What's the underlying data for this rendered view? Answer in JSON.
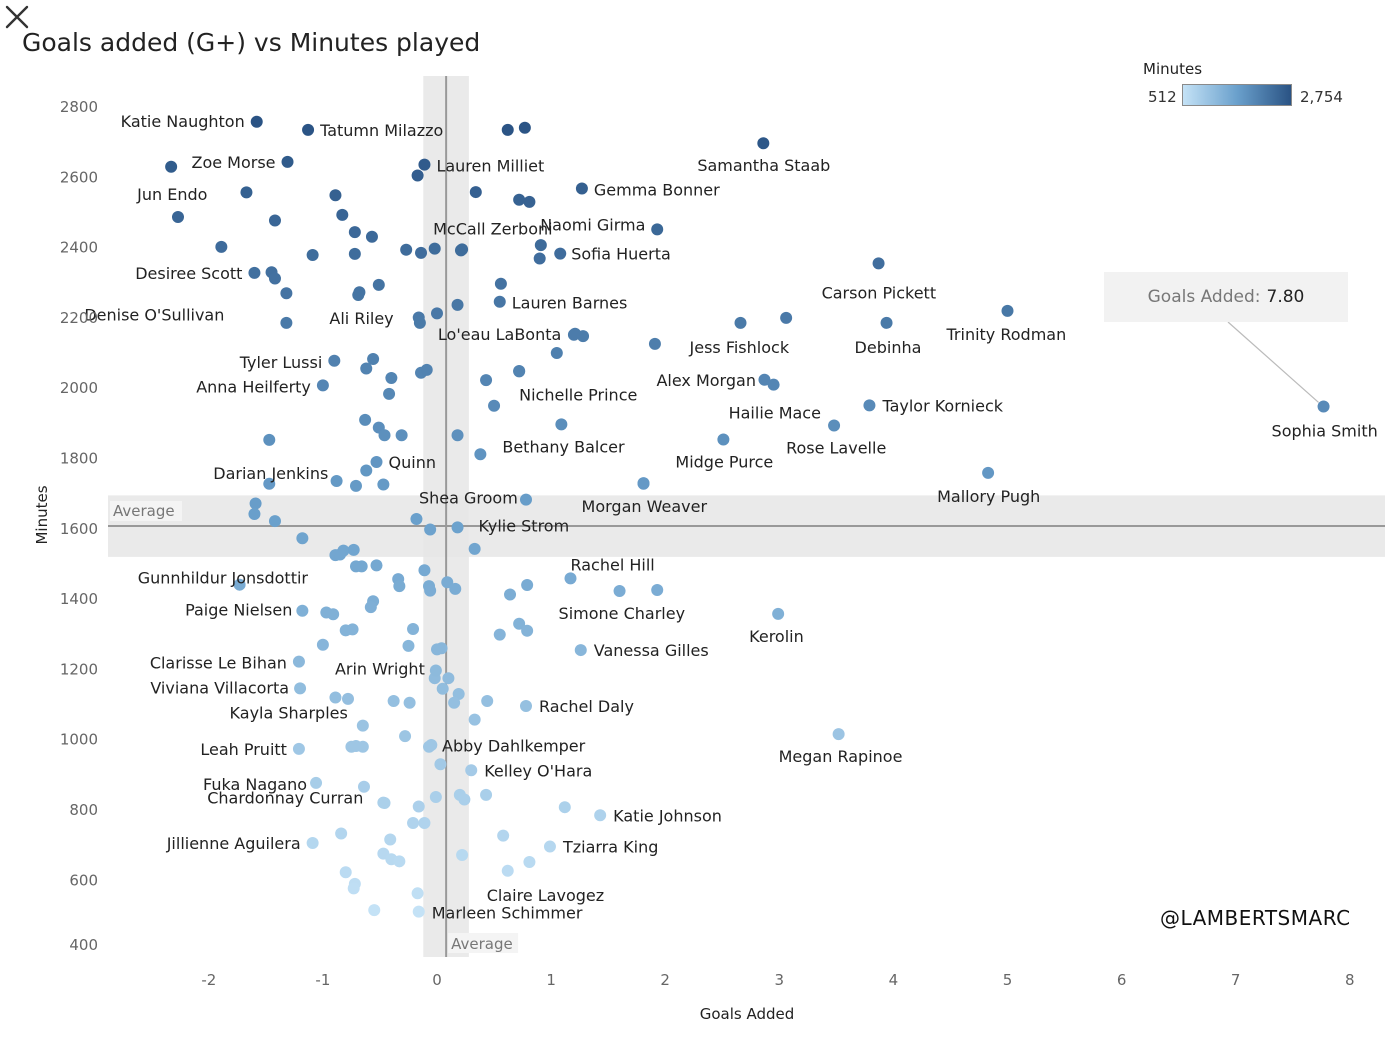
{
  "title": "Goals added (G+) vs Minutes played",
  "watermark": "@LAMBERTSMARC",
  "legend": {
    "title": "Minutes",
    "min_label": "512",
    "max_label": "2,754"
  },
  "tooltip": {
    "label": "Goals Added:",
    "value": "7.80"
  },
  "icons": {
    "close": "close-icon"
  },
  "colors": {
    "low": "#c4e2f6",
    "mid": "#6aa0cc",
    "high": "#2a5384",
    "band": "#e6e6e6",
    "refline": "#999999"
  },
  "chart_data": {
    "type": "scatter",
    "title": "Goals added (G+) vs Minutes played",
    "xlabel": "Goals Added",
    "ylabel": "Minutes",
    "xlim": [
      -2.8,
      8.3
    ],
    "ylim": [
      370,
      2860
    ],
    "x_ticks": [
      "-2",
      "-1",
      "0",
      "1",
      "2",
      "3",
      "4",
      "5",
      "6",
      "7",
      "8"
    ],
    "y_ticks": [
      "2800",
      "2600",
      "2400",
      "2200",
      "2000",
      "1800",
      "1600",
      "1400",
      "1200",
      "1000",
      "800",
      "600",
      "400"
    ],
    "grid": false,
    "color_scale": {
      "field": "Minutes",
      "min": 512,
      "max": 2754
    },
    "reference_lines": {
      "x": {
        "value": 0.08,
        "band": [
          -0.12,
          0.28
        ],
        "label": "Average"
      },
      "y": {
        "value": 1608,
        "band": [
          1520,
          1695
        ],
        "label": "Average"
      }
    },
    "labeled_points": [
      {
        "name": "Katie Naughton",
        "x": -1.58,
        "y": 2758
      },
      {
        "name": "Tatumn Milazzo",
        "x": -1.13,
        "y": 2735
      },
      {
        "name": "Zoe Morse",
        "x": -1.31,
        "y": 2644
      },
      {
        "name": "Jun Endo",
        "x": -2.33,
        "y": 2630
      },
      {
        "name": "Lauren Milliet",
        "x": -0.11,
        "y": 2636
      },
      {
        "name": "Samantha Staab",
        "x": 2.86,
        "y": 2697
      },
      {
        "name": "Gemma Bonner",
        "x": 1.27,
        "y": 2568
      },
      {
        "name": "Naomi Girma",
        "x": 1.93,
        "y": 2452
      },
      {
        "name": "McCall Zerboni",
        "x": 0.22,
        "y": 2395
      },
      {
        "name": "Sofia Huerta",
        "x": 1.08,
        "y": 2383
      },
      {
        "name": "Desiree Scott",
        "x": -1.6,
        "y": 2328
      },
      {
        "name": "Carson Pickett",
        "x": 3.87,
        "y": 2355
      },
      {
        "name": "Denise O'Sullivan",
        "x": -1.32,
        "y": 2270
      },
      {
        "name": "Lauren Barnes",
        "x": 0.55,
        "y": 2246
      },
      {
        "name": "Trinity Rodman",
        "x": 5.0,
        "y": 2220
      },
      {
        "name": "Ali Riley",
        "x": -0.68,
        "y": 2273
      },
      {
        "name": "Debinha",
        "x": 3.94,
        "y": 2186
      },
      {
        "name": "Jess Fishlock",
        "x": 2.66,
        "y": 2186
      },
      {
        "name": "Lo'eau LaBonta",
        "x": 1.2,
        "y": 2152
      },
      {
        "name": "Tyler Lussi",
        "x": -0.9,
        "y": 2078
      },
      {
        "name": "Anna Heilferty",
        "x": -1.0,
        "y": 2008
      },
      {
        "name": "Alex Morgan",
        "x": 2.87,
        "y": 2024
      },
      {
        "name": "Nichelle Prince",
        "x": 0.72,
        "y": 2048
      },
      {
        "name": "Hailie Mace",
        "x": 2.95,
        "y": 2010
      },
      {
        "name": "Taylor Kornieck",
        "x": 3.79,
        "y": 1951
      },
      {
        "name": "Sophia Smith",
        "x": 7.77,
        "y": 1948
      },
      {
        "name": "Rose Lavelle",
        "x": 3.48,
        "y": 1894
      },
      {
        "name": "Bethany Balcer",
        "x": 1.09,
        "y": 1897
      },
      {
        "name": "Midge Purce",
        "x": 2.51,
        "y": 1854
      },
      {
        "name": "Darian Jenkins",
        "x": -1.47,
        "y": 1728
      },
      {
        "name": "Quinn",
        "x": -0.53,
        "y": 1790
      },
      {
        "name": "Mallory Pugh",
        "x": 4.83,
        "y": 1759
      },
      {
        "name": "Morgan Weaver",
        "x": 1.81,
        "y": 1728
      },
      {
        "name": "Shea Groom",
        "x": 0.78,
        "y": 1683
      },
      {
        "name": "Kylie Strom",
        "x": 0.18,
        "y": 1604
      },
      {
        "name": "Gunnhildur Jonsdottir",
        "x": -0.85,
        "y": 1527
      },
      {
        "name": "Rachel Hill",
        "x": 1.17,
        "y": 1459
      },
      {
        "name": "Paige Nielsen",
        "x": -1.18,
        "y": 1367
      },
      {
        "name": "Simone Charley",
        "x": 1.6,
        "y": 1423
      },
      {
        "name": "Kerolin",
        "x": 2.99,
        "y": 1358
      },
      {
        "name": "Vanessa Gilles",
        "x": 1.26,
        "y": 1255
      },
      {
        "name": "Clarisse Le Bihan",
        "x": -1.21,
        "y": 1222
      },
      {
        "name": "Arin Wright",
        "x": -0.01,
        "y": 1197
      },
      {
        "name": "Viviana Villacorta",
        "x": -1.2,
        "y": 1146
      },
      {
        "name": "Rachel Daly",
        "x": 0.78,
        "y": 1096
      },
      {
        "name": "Kayla Sharples",
        "x": -0.65,
        "y": 1040
      },
      {
        "name": "Megan Rapinoe",
        "x": 3.52,
        "y": 1016
      },
      {
        "name": "Abby Dahlkemper",
        "x": -0.07,
        "y": 980
      },
      {
        "name": "Leah Pruitt",
        "x": -1.21,
        "y": 974
      },
      {
        "name": "Kelley O'Hara",
        "x": 0.3,
        "y": 913
      },
      {
        "name": "Fuka Nagano",
        "x": -1.06,
        "y": 877
      },
      {
        "name": "Chardonnay Curran",
        "x": -0.47,
        "y": 821
      },
      {
        "name": "Katie Johnson",
        "x": 1.43,
        "y": 785
      },
      {
        "name": "Tziarra King",
        "x": 0.99,
        "y": 696
      },
      {
        "name": "Jillienne Aguilera",
        "x": -1.09,
        "y": 706
      },
      {
        "name": "Claire Lavogez",
        "x": 0.62,
        "y": 627
      },
      {
        "name": "Marleen Schimmer",
        "x": -0.16,
        "y": 511
      }
    ],
    "unlabeled_points": [
      [
        -0.17,
        2605
      ],
      [
        0.62,
        2735
      ],
      [
        0.77,
        2741
      ],
      [
        0.34,
        2558
      ],
      [
        0.72,
        2536
      ],
      [
        0.81,
        2530
      ],
      [
        -1.67,
        2557
      ],
      [
        -0.89,
        2549
      ],
      [
        -0.83,
        2493
      ],
      [
        -2.27,
        2487
      ],
      [
        -1.42,
        2477
      ],
      [
        -0.72,
        2444
      ],
      [
        -0.57,
        2431
      ],
      [
        -1.89,
        2402
      ],
      [
        -1.09,
        2379
      ],
      [
        -0.72,
        2382
      ],
      [
        -0.27,
        2394
      ],
      [
        -0.14,
        2385
      ],
      [
        -0.02,
        2397
      ],
      [
        0.21,
        2392
      ],
      [
        0.9,
        2369
      ],
      [
        0.91,
        2407
      ],
      [
        -1.45,
        2330
      ],
      [
        -1.42,
        2312
      ],
      [
        0.56,
        2297
      ],
      [
        -0.51,
        2294
      ],
      [
        -0.69,
        2265
      ],
      [
        -1.32,
        2186
      ],
      [
        0.18,
        2237
      ],
      [
        -0.16,
        2201
      ],
      [
        0.0,
        2213
      ],
      [
        -0.15,
        2186
      ],
      [
        3.06,
        2200
      ],
      [
        1.21,
        2155
      ],
      [
        1.28,
        2148
      ],
      [
        1.91,
        2126
      ],
      [
        1.05,
        2100
      ],
      [
        -0.56,
        2083
      ],
      [
        -0.62,
        2056
      ],
      [
        0.72,
        2049
      ],
      [
        -0.14,
        2044
      ],
      [
        -0.09,
        2052
      ],
      [
        -0.4,
        2029
      ],
      [
        0.43,
        2023
      ],
      [
        -0.42,
        1984
      ],
      [
        0.5,
        1950
      ],
      [
        -0.63,
        1910
      ],
      [
        -0.51,
        1888
      ],
      [
        -0.46,
        1866
      ],
      [
        -0.31,
        1866
      ],
      [
        0.18,
        1866
      ],
      [
        -1.47,
        1853
      ],
      [
        0.38,
        1812
      ],
      [
        -0.62,
        1766
      ],
      [
        -0.88,
        1736
      ],
      [
        -0.71,
        1722
      ],
      [
        -0.47,
        1726
      ],
      [
        1.81,
        1730
      ],
      [
        -1.59,
        1672
      ],
      [
        -1.6,
        1642
      ],
      [
        -1.42,
        1622
      ],
      [
        -0.18,
        1628
      ],
      [
        -0.06,
        1598
      ],
      [
        0.33,
        1543
      ],
      [
        -1.18,
        1573
      ],
      [
        -0.82,
        1538
      ],
      [
        -0.73,
        1540
      ],
      [
        -0.89,
        1525
      ],
      [
        -0.71,
        1493
      ],
      [
        -0.66,
        1493
      ],
      [
        -0.53,
        1496
      ],
      [
        -0.34,
        1457
      ],
      [
        -0.11,
        1482
      ],
      [
        -0.33,
        1437
      ],
      [
        -0.07,
        1437
      ],
      [
        -0.06,
        1424
      ],
      [
        0.09,
        1448
      ],
      [
        0.16,
        1429
      ],
      [
        0.79,
        1440
      ],
      [
        1.93,
        1426
      ],
      [
        -1.73,
        1441
      ],
      [
        -0.56,
        1394
      ],
      [
        0.64,
        1413
      ],
      [
        -0.97,
        1362
      ],
      [
        -0.91,
        1357
      ],
      [
        -0.58,
        1377
      ],
      [
        0.72,
        1330
      ],
      [
        0.79,
        1310
      ],
      [
        -0.8,
        1311
      ],
      [
        -0.74,
        1314
      ],
      [
        -0.21,
        1315
      ],
      [
        0.55,
        1299
      ],
      [
        -1.0,
        1270
      ],
      [
        -0.25,
        1267
      ],
      [
        0.0,
        1257
      ],
      [
        0.04,
        1260
      ],
      [
        -0.02,
        1175
      ],
      [
        0.1,
        1175
      ],
      [
        0.05,
        1145
      ],
      [
        0.19,
        1130
      ],
      [
        0.44,
        1110
      ],
      [
        -0.89,
        1120
      ],
      [
        -0.78,
        1116
      ],
      [
        -0.38,
        1110
      ],
      [
        -0.24,
        1105
      ],
      [
        0.15,
        1105
      ],
      [
        0.33,
        1057
      ],
      [
        -0.28,
        1010
      ],
      [
        -0.75,
        980
      ],
      [
        -0.65,
        980
      ],
      [
        -0.71,
        982
      ],
      [
        -0.05,
        985
      ],
      [
        0.03,
        930
      ],
      [
        0.43,
        843
      ],
      [
        0.2,
        843
      ],
      [
        0.24,
        830
      ],
      [
        -0.64,
        866
      ],
      [
        -0.46,
        820
      ],
      [
        -0.16,
        810
      ],
      [
        -0.01,
        837
      ],
      [
        1.12,
        808
      ],
      [
        -0.11,
        763
      ],
      [
        -0.21,
        763
      ],
      [
        -0.84,
        733
      ],
      [
        -0.41,
        716
      ],
      [
        0.58,
        727
      ],
      [
        -0.47,
        676
      ],
      [
        -0.4,
        660
      ],
      [
        -0.33,
        654
      ],
      [
        0.22,
        672
      ],
      [
        0.81,
        652
      ],
      [
        -0.8,
        623
      ],
      [
        -0.72,
        590
      ],
      [
        -0.73,
        577
      ],
      [
        -0.17,
        563
      ],
      [
        -0.55,
        515
      ]
    ]
  }
}
